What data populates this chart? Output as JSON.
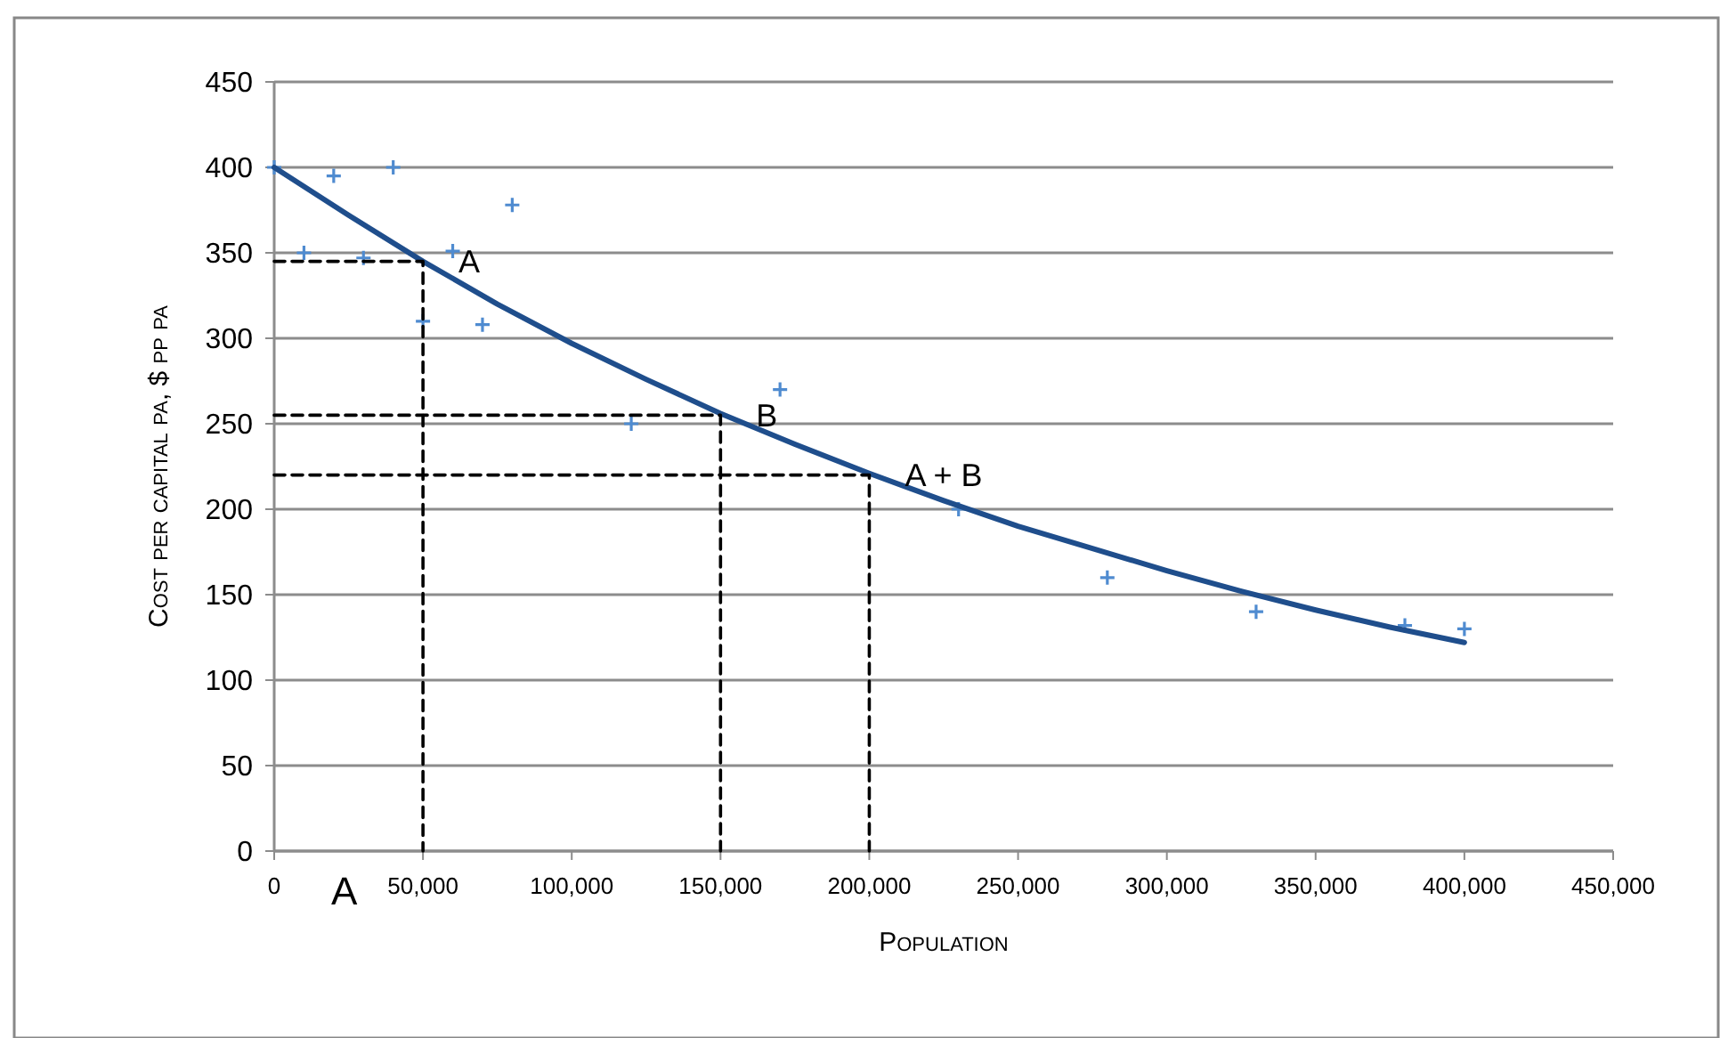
{
  "chart_data": {
    "type": "scatter",
    "xlabel": "Population",
    "ylabel": "Cost per capital pa, $ pp pa",
    "xlim": [
      0,
      450000
    ],
    "ylim": [
      0,
      450
    ],
    "xticks": [
      0,
      {
        "value": 50000,
        "label": "50,000"
      },
      {
        "value": 100000,
        "label": "100,000"
      },
      {
        "value": 150000,
        "label": "150,000"
      },
      {
        "value": 200000,
        "label": "200,000"
      },
      {
        "value": 250000,
        "label": "250,000"
      },
      {
        "value": 300000,
        "label": "300,000"
      },
      {
        "value": 350000,
        "label": "350,000"
      },
      {
        "value": 400000,
        "label": "400,000"
      },
      {
        "value": 450000,
        "label": "450,000"
      }
    ],
    "yticks": [
      0,
      50,
      100,
      150,
      200,
      250,
      300,
      350,
      400,
      450
    ],
    "grid": "y",
    "series": [
      {
        "marker": "cross",
        "color": "#4f8bd0",
        "x": [
          0,
          10000,
          20000,
          30000,
          40000,
          50000,
          60000,
          70000,
          80000,
          120000,
          170000,
          230000,
          280000,
          330000,
          380000,
          400000
        ],
        "values": [
          400,
          350,
          395,
          347,
          400,
          310,
          351,
          308,
          378,
          250,
          270,
          200,
          160,
          140,
          132,
          130
        ]
      },
      {
        "type": "line",
        "marker": "none",
        "line_style": "solid",
        "color": "#1f4e8c",
        "x": [
          0,
          25000,
          50000,
          75000,
          100000,
          125000,
          150000,
          175000,
          200000,
          225000,
          250000,
          275000,
          300000,
          325000,
          350000,
          375000,
          400000
        ],
        "values": [
          400,
          372,
          345,
          320,
          297,
          276,
          256,
          238,
          221,
          205,
          190,
          177,
          164,
          152,
          141,
          131,
          122
        ]
      },
      {
        "type": "line",
        "marker": "none",
        "line_style": "dashed",
        "color": "#000000",
        "x": [
          0,
          50000,
          50000
        ],
        "values": [
          345,
          345,
          0
        ]
      },
      {
        "type": "line",
        "marker": "none",
        "line_style": "dashed",
        "color": "#000000",
        "x": [
          0,
          150000,
          150000
        ],
        "values": [
          255,
          255,
          0
        ]
      },
      {
        "type": "line",
        "marker": "none",
        "line_style": "dashed",
        "color": "#000000",
        "x": [
          0,
          200000,
          200000
        ],
        "values": [
          220,
          220,
          0
        ]
      }
    ],
    "annotations": [
      {
        "text": "A",
        "x": 50000,
        "y": 345
      },
      {
        "text": "B",
        "x": 150000,
        "y": 255
      },
      {
        "text": "A + B",
        "x": 200000,
        "y": 220
      },
      "A"
    ]
  }
}
